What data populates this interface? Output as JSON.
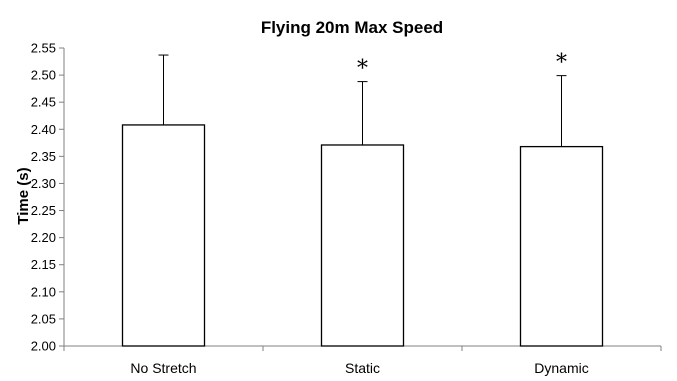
{
  "chart_data": {
    "type": "bar",
    "title": "Flying 20m Max Speed",
    "xlabel": "",
    "ylabel": "Time (s)",
    "ylim": [
      2.0,
      2.55
    ],
    "yticks": [
      "2.00",
      "2.05",
      "2.10",
      "2.15",
      "2.20",
      "2.25",
      "2.30",
      "2.35",
      "2.40",
      "2.45",
      "2.50",
      "2.55"
    ],
    "categories": [
      "No Stretch",
      "Static",
      "Dynamic"
    ],
    "series": [
      {
        "values": [
          2.408,
          2.371,
          2.368
        ],
        "error_upper": [
          2.537,
          2.488,
          2.499
        ]
      }
    ],
    "annotations": [
      "",
      "*",
      "*"
    ],
    "grid": false,
    "legend": "none",
    "colors": {
      "bar_fill": "#ffffff",
      "bar_stroke": "#000000",
      "axis": "#808080"
    }
  }
}
